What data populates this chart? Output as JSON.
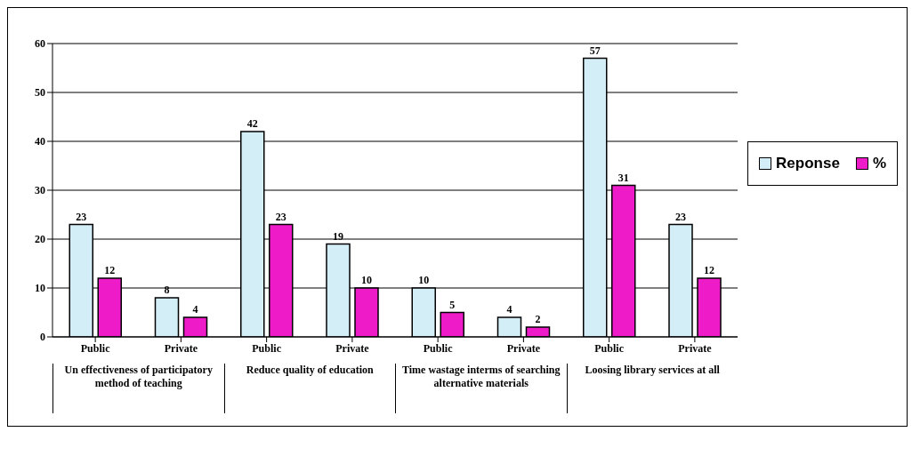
{
  "chart_data": {
    "type": "bar",
    "categories": [
      "Public",
      "Private",
      "Public",
      "Private",
      "Public",
      "Private",
      "Public",
      "Private"
    ],
    "series": [
      {
        "name": "Reponse",
        "color": "#d4eef8",
        "values": [
          23,
          8,
          42,
          19,
          10,
          4,
          57,
          23
        ]
      },
      {
        "name": "%",
        "color": "#ee1bc8",
        "values": [
          12,
          4,
          23,
          10,
          5,
          2,
          31,
          12
        ]
      }
    ],
    "ylim": [
      0,
      60
    ],
    "yticks": [
      0,
      10,
      20,
      30,
      40,
      50,
      60
    ],
    "grid": "y",
    "legend": "right",
    "data_labels": true,
    "annotations": [
      "Un effectiveness of participatory method of teaching",
      "Reduce quality of education",
      "Time wastage interms of searching alternative materials",
      "Loosing library services at all"
    ]
  }
}
